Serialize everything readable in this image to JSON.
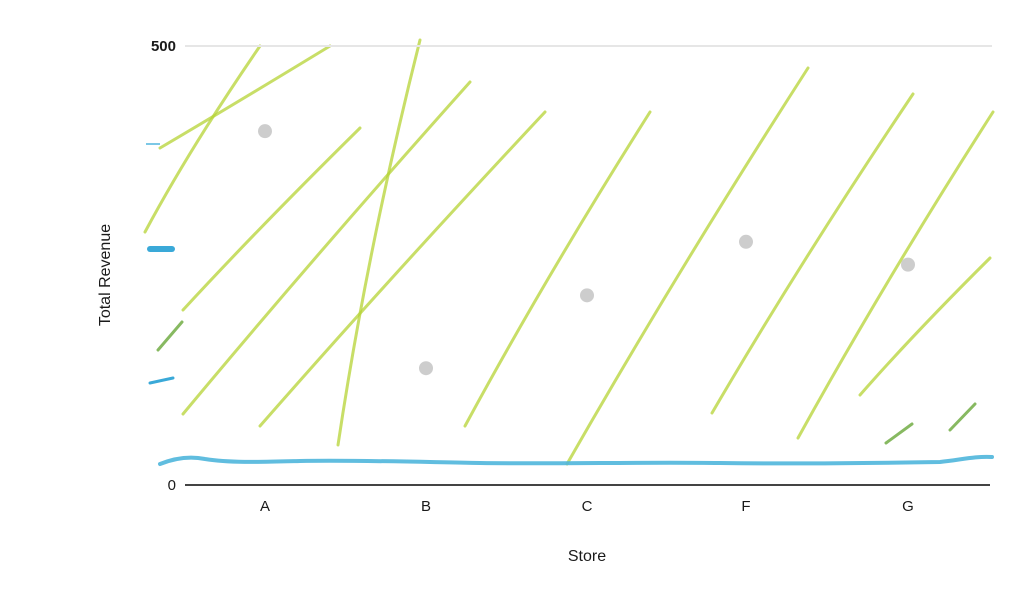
{
  "chart_data": {
    "type": "scatter",
    "xlabel": "Store",
    "ylabel": "Total Revenue",
    "categories": [
      "A",
      "B",
      "C",
      "F",
      "G"
    ],
    "ylim": [
      0,
      500
    ],
    "yticks": [
      0,
      500
    ],
    "grid": false,
    "legend": "none",
    "colors": {
      "points": "#c8c8c8",
      "baseline": "#4fb6dc",
      "hatch": "#b5d334",
      "hatch_dark": "#6aa83a",
      "axis": "#444444"
    },
    "series": [
      {
        "values": [
          403,
          133,
          216,
          277,
          251
        ]
      }
    ]
  }
}
